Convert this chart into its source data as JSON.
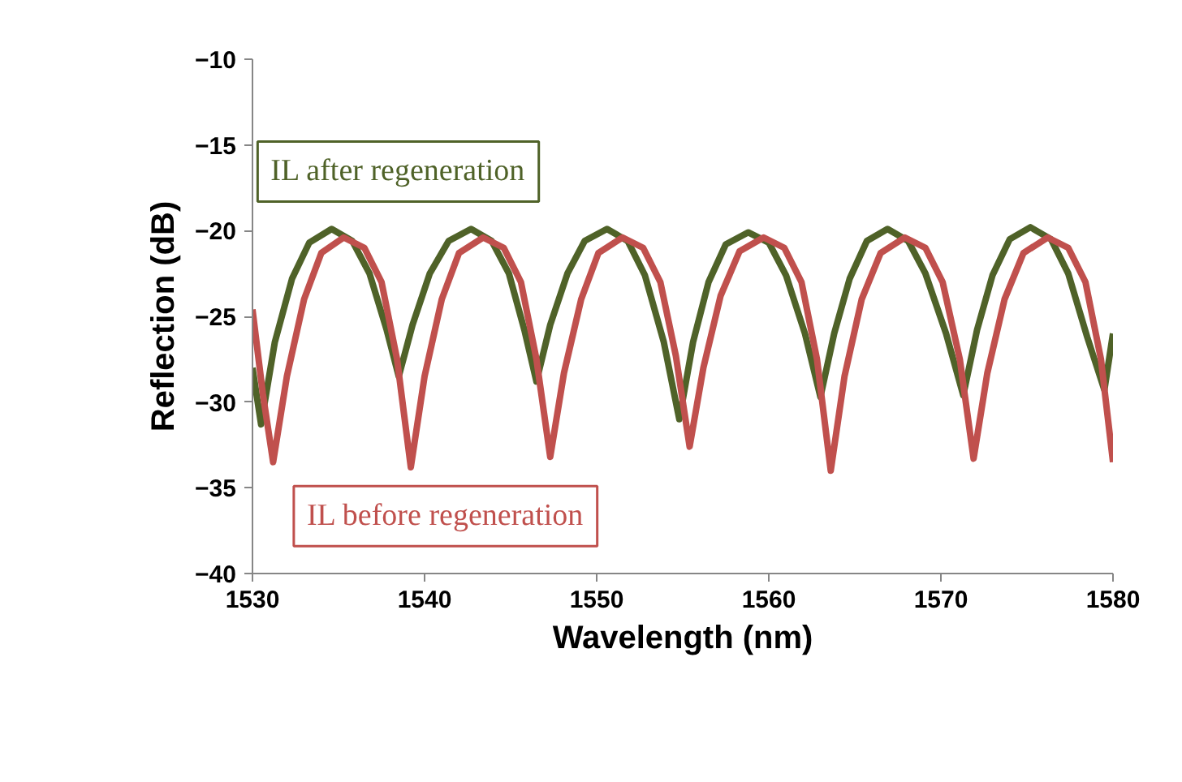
{
  "chart_data": {
    "type": "line",
    "xlabel": "Wavelength (nm)",
    "ylabel": "Reflection (dB)",
    "xlim": [
      1530,
      1580
    ],
    "xticks": [
      1530,
      1540,
      1550,
      1560,
      1570,
      1580
    ],
    "ylim": [
      -40,
      -10
    ],
    "yticks": [
      -40,
      -35,
      -30,
      -25,
      -20,
      -15,
      -10
    ],
    "grid": false,
    "legend": false,
    "marker": "none",
    "line_style": "solid",
    "series": [
      {
        "name": "IL after regeneration",
        "color": "#4f6228",
        "x": [
          1530,
          1530.5,
          1531.3,
          1532.3,
          1533.3,
          1534.6,
          1535.8,
          1536.8,
          1537.8,
          1538.5,
          1539.3,
          1540.3,
          1541.4,
          1542.7,
          1543.9,
          1544.9,
          1545.8,
          1546.5,
          1547.3,
          1548.3,
          1549.3,
          1550.6,
          1551.8,
          1552.8,
          1553.9,
          1554.8,
          1555.6,
          1556.5,
          1557.5,
          1558.8,
          1560,
          1561,
          1562.1,
          1563,
          1563.8,
          1564.7,
          1565.7,
          1566.9,
          1568.1,
          1569.1,
          1570.3,
          1571.3,
          1572.1,
          1573,
          1574,
          1575.2,
          1576.4,
          1577.4,
          1578.5,
          1579.5,
          1580
        ],
        "values": [
          -28,
          -31.3,
          -26.5,
          -22.8,
          -20.7,
          -19.9,
          -20.6,
          -22.5,
          -25.8,
          -28.5,
          -25.5,
          -22.5,
          -20.6,
          -19.9,
          -20.6,
          -22.5,
          -25.8,
          -28.8,
          -25.5,
          -22.5,
          -20.6,
          -19.9,
          -20.6,
          -22.6,
          -26.5,
          -31,
          -26.5,
          -23,
          -20.8,
          -20.1,
          -20.7,
          -22.6,
          -26,
          -29.7,
          -26,
          -22.8,
          -20.6,
          -19.9,
          -20.6,
          -22.5,
          -26,
          -29.6,
          -25.8,
          -22.6,
          -20.5,
          -19.8,
          -20.5,
          -22.5,
          -26.2,
          -29.3,
          -26
        ]
      },
      {
        "name": "IL before regeneration",
        "color": "#c0504d",
        "x": [
          1530,
          1530.6,
          1531.2,
          1532,
          1533,
          1534,
          1535.3,
          1536.5,
          1537.5,
          1538.4,
          1539.2,
          1540,
          1541,
          1542,
          1543.4,
          1544.6,
          1545.6,
          1546.5,
          1547.3,
          1548.1,
          1549.1,
          1550.1,
          1551.5,
          1552.7,
          1553.7,
          1554.6,
          1555.4,
          1556.2,
          1557.2,
          1558.3,
          1559.7,
          1560.9,
          1561.9,
          1562.8,
          1563.6,
          1564.4,
          1565.4,
          1566.5,
          1567.9,
          1569.1,
          1570.1,
          1571.1,
          1571.9,
          1572.7,
          1573.7,
          1574.8,
          1576.2,
          1577.4,
          1578.4,
          1579.3,
          1580
        ],
        "values": [
          -24.6,
          -29.5,
          -33.5,
          -28.5,
          -24,
          -21.3,
          -20.4,
          -21,
          -23,
          -27.5,
          -33.8,
          -28.5,
          -24,
          -21.3,
          -20.4,
          -21,
          -23,
          -27.5,
          -33.2,
          -28.3,
          -24,
          -21.3,
          -20.4,
          -21,
          -23,
          -27.3,
          -32.6,
          -28,
          -23.8,
          -21.2,
          -20.4,
          -21,
          -23,
          -27.5,
          -34,
          -28.5,
          -24,
          -21.3,
          -20.4,
          -21,
          -23,
          -27.5,
          -33.3,
          -28.3,
          -24,
          -21.3,
          -20.4,
          -21,
          -23,
          -27.5,
          -33.5
        ]
      }
    ]
  }
}
